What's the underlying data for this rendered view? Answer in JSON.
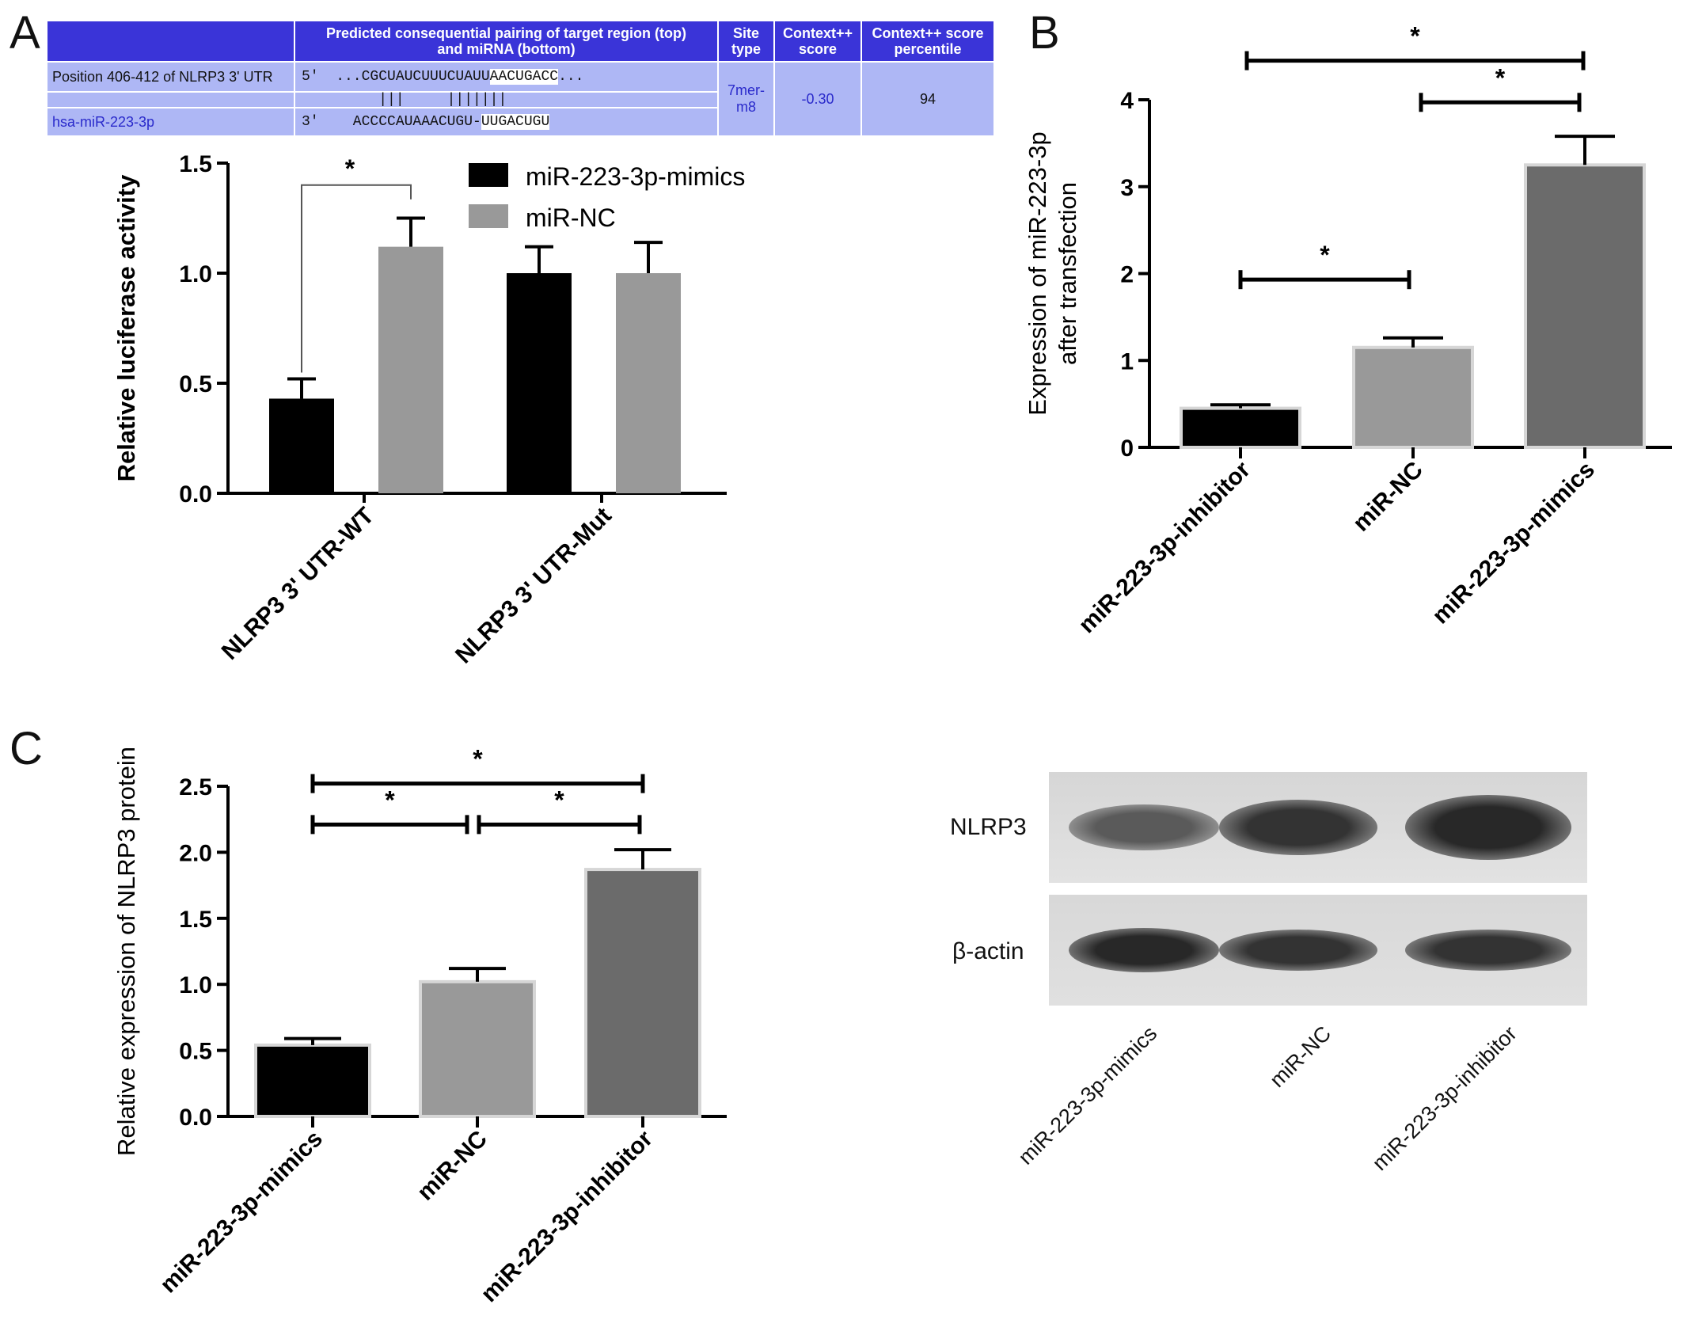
{
  "panels": {
    "a": "A",
    "b": "B",
    "c": "C"
  },
  "table": {
    "headers": [
      "",
      "Predicted consequential pairing of target region (top)\nand miRNA (bottom)",
      "Site\ntype",
      "Context++\nscore",
      "Context++ score\npercentile"
    ],
    "target_label": "Position 406-412 of NLRP3 3' UTR",
    "mirna_label": "hsa-miR-223-3p",
    "target_prefix": "5'  ...CGCUAUCUUUCUAUU",
    "target_seed": "AACUGACC",
    "target_suffix": "...",
    "pairing": "         |||     |||||||",
    "mirna_prefix": "3'    ACCCCAUAAACUGU-",
    "mirna_seed": "UUGACUGU",
    "site_type": "7mer-\nm8",
    "context_score": "-0.30",
    "percentile": "94"
  },
  "western_blot": {
    "bands": [
      "NLRP3",
      "β-actin"
    ],
    "lanes": [
      "miR-223-3p-mimics",
      "miR-NC",
      "miR-223-3p-inhibitor"
    ],
    "intensity": {
      "NLRP3": [
        0.55,
        0.9,
        1.0
      ],
      "β-actin": [
        1.0,
        0.9,
        0.9
      ]
    }
  },
  "chart_data": [
    {
      "type": "bar",
      "panel": "A",
      "ylabel": "Relative luciferase activity",
      "categories": [
        "NLRP3 3' UTR-WT",
        "NLRP3 3' UTR-Mut"
      ],
      "series": [
        {
          "name": "miR-223-3p-mimics",
          "color": "#000000",
          "values": [
            0.43,
            1.0
          ],
          "errors": [
            0.09,
            0.12
          ]
        },
        {
          "name": "miR-NC",
          "color": "#999999",
          "values": [
            1.12,
            1.0
          ],
          "errors": [
            0.13,
            0.14
          ]
        }
      ],
      "ylim": [
        0,
        1.5
      ],
      "yticks": [
        "0.0",
        "0.5",
        "1.0",
        "1.5"
      ],
      "significance": [
        {
          "label": "*",
          "between": "NLRP3 3' UTR-WT"
        }
      ],
      "legend": "top-right"
    },
    {
      "type": "bar",
      "panel": "B",
      "ylabel": "Expression of miR-223-3p\nafter transfection",
      "categories": [
        "miR-223-3p-inhibitor",
        "miR-NC",
        "miR-223-3p-mimics"
      ],
      "values": [
        0.45,
        1.15,
        3.25
      ],
      "errors": [
        0.04,
        0.11,
        0.33
      ],
      "colors": [
        "#000000",
        "#999999",
        "#6b6b6b"
      ],
      "ylim": [
        0,
        4
      ],
      "yticks": [
        "0",
        "1",
        "2",
        "3",
        "4"
      ],
      "significance": [
        {
          "label": "*",
          "from": 0,
          "to": 1
        },
        {
          "label": "*",
          "from": 1,
          "to": 2
        },
        {
          "label": "*",
          "from": 0,
          "to": 2
        }
      ]
    },
    {
      "type": "bar",
      "panel": "C",
      "ylabel": "Relative expression of NLRP3 protein",
      "categories": [
        "miR-223-3p-mimics",
        "miR-NC",
        "miR-223-3p-inhibitor"
      ],
      "values": [
        0.54,
        1.02,
        1.87
      ],
      "errors": [
        0.05,
        0.1,
        0.15
      ],
      "colors": [
        "#000000",
        "#999999",
        "#6b6b6b"
      ],
      "ylim": [
        0,
        2.5
      ],
      "yticks": [
        "0.0",
        "0.5",
        "1.0",
        "1.5",
        "2.0",
        "2.5"
      ],
      "significance": [
        {
          "label": "*",
          "from": 0,
          "to": 1
        },
        {
          "label": "*",
          "from": 1,
          "to": 2
        },
        {
          "label": "*",
          "from": 0,
          "to": 2
        }
      ]
    }
  ]
}
